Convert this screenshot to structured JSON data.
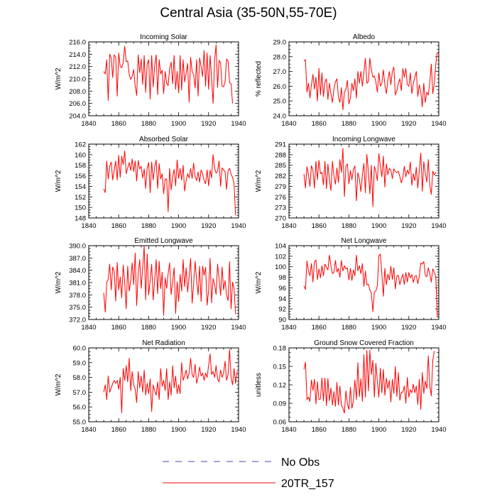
{
  "title": "Central Asia (35-50N,55-70E)",
  "colors": {
    "model": "#ff0000",
    "obs": "#4646b4",
    "axis": "#000000"
  },
  "legend": [
    {
      "label": "No Obs",
      "color": "#4646b4",
      "dash": true
    },
    {
      "label": "20TR_157",
      "color": "#ff0000",
      "dash": false
    }
  ],
  "chart_data": [
    {
      "type": "line",
      "title": "Incoming Solar",
      "xlabel": "",
      "ylabel": "W/m^2",
      "xlim": [
        1840,
        1940
      ],
      "xticks": [
        1840,
        1860,
        1880,
        1900,
        1920,
        1940
      ],
      "ylim": [
        204,
        216
      ],
      "yticks": [
        "204.0",
        "206.0",
        "208.0",
        "210.0",
        "212.0",
        "214.0",
        "216.0"
      ],
      "x_start": 1850,
      "series": [
        {
          "name": "20TR_157",
          "values": [
            211.2,
            210.8,
            213.1,
            206.5,
            214.0,
            213.4,
            210.2,
            213.9,
            213.5,
            207.2,
            214.2,
            212.0,
            211.8,
            212.7,
            215.3,
            212.8,
            212.9,
            210.7,
            209.9,
            210.4,
            211.5,
            208.8,
            207.3,
            213.9,
            211.0,
            213.2,
            209.1,
            213.8,
            207.8,
            212.4,
            213.1,
            206.7,
            213.8,
            208.7,
            212.1,
            213.9,
            207.4,
            213.1,
            210.8,
            211.4,
            207.6,
            211.2,
            209.3,
            208.9,
            211.7,
            212.7,
            209.2,
            213.8,
            208.3,
            211.2,
            207.7,
            213.8,
            208.2,
            213.1,
            209.5,
            210.9,
            212.5,
            206.2,
            213.5,
            211.2,
            210.7,
            208.5,
            213.1,
            207.2,
            213.4,
            212.0,
            210.4,
            214.6,
            208.8,
            214.2,
            208.3,
            213.8,
            210.0,
            206.0,
            213.0,
            215.5,
            208.6,
            213.0,
            212.6,
            208.8,
            208.7,
            209.5,
            213.2,
            212.9,
            209.4,
            209.2,
            206.0
          ]
        }
      ]
    },
    {
      "type": "line",
      "title": "Albedo",
      "xlabel": "",
      "ylabel": "% reflected",
      "xlim": [
        1840,
        1940
      ],
      "xticks": [
        1840,
        1860,
        1880,
        1900,
        1920,
        1940
      ],
      "ylim": [
        24,
        29
      ],
      "yticks": [
        "24.0",
        "25.0",
        "26.0",
        "27.0",
        "28.0",
        "29.0"
      ],
      "x_start": 1850,
      "series": [
        {
          "name": "20TR_157",
          "values": [
            27.7,
            27.8,
            25.6,
            26.2,
            25.2,
            26.1,
            26.8,
            25.8,
            26.6,
            25.0,
            27.2,
            25.4,
            26.9,
            25.3,
            26.3,
            26.5,
            25.1,
            26.2,
            25.5,
            24.9,
            25.8,
            26.3,
            26.5,
            25.3,
            24.9,
            25.9,
            24.4,
            25.6,
            25.8,
            26.4,
            24.8,
            25.2,
            26.2,
            25.7,
            26.5,
            25.2,
            27.0,
            26.2,
            27.0,
            26.0,
            26.9,
            27.9,
            26.2,
            26.3,
            27.9,
            27.1,
            26.6,
            26.7,
            26.3,
            25.6,
            26.9,
            26.0,
            26.2,
            27.1,
            26.1,
            25.5,
            26.4,
            27.0,
            26.1,
            27.0,
            27.3,
            25.4,
            25.7,
            26.2,
            26.5,
            25.7,
            27.2,
            26.6,
            27.2,
            26.1,
            26.0,
            26.9,
            25.5,
            26.2,
            26.6,
            27.0,
            25.3,
            26.1,
            25.6,
            24.6,
            26.2,
            24.9,
            25.6,
            25.4,
            26.3,
            27.5,
            25.5,
            26.2,
            27.5,
            28.3
          ]
        }
      ]
    },
    {
      "type": "line",
      "title": "Absorbed Solar",
      "xlabel": "",
      "ylabel": "W/m^2",
      "xlim": [
        1840,
        1940
      ],
      "xticks": [
        1840,
        1860,
        1880,
        1900,
        1920,
        1940
      ],
      "ylim": [
        148,
        162
      ],
      "yticks": [
        "148",
        "150",
        "152",
        "154",
        "156",
        "158",
        "160",
        "162"
      ],
      "x_start": 1850,
      "series": [
        {
          "name": "20TR_157",
          "values": [
            153.5,
            152.8,
            158.8,
            155.4,
            157.8,
            158.6,
            155.2,
            157.1,
            158.8,
            155.2,
            159.9,
            155.7,
            159.7,
            158.1,
            160.7,
            156.4,
            157.5,
            158.5,
            157.0,
            159.2,
            156.8,
            158.8,
            155.0,
            158.9,
            157.3,
            157.8,
            155.6,
            157.3,
            153.6,
            157.5,
            158.5,
            152.8,
            158.6,
            155.2,
            157.6,
            159.0,
            153.6,
            158.3,
            155.4,
            156.4,
            152.6,
            155.4,
            155.4,
            149.2,
            157.4,
            153.3,
            155.8,
            157.2,
            154.1,
            159.0,
            155.5,
            157.4,
            155.2,
            158.0,
            153.1,
            155.1,
            156.4,
            155.6,
            157.4,
            155.5,
            158.4,
            155.8,
            155.1,
            156.7,
            154.8,
            157.1,
            156.4,
            155.1,
            154.5,
            157.1,
            154.1,
            157.1,
            155.6,
            160.0,
            157.5,
            156.5,
            156.9,
            158.8,
            154.0,
            157.5,
            157.1,
            156.8,
            153.4,
            157.0,
            157.4,
            156.3,
            155.7,
            154.5,
            148.5
          ]
        }
      ]
    },
    {
      "type": "line",
      "title": "Incoming Longwave",
      "xlabel": "",
      "ylabel": "W/m^2",
      "xlim": [
        1840,
        1940
      ],
      "xticks": [
        1840,
        1860,
        1880,
        1900,
        1920,
        1940
      ],
      "ylim": [
        270,
        291
      ],
      "yticks": [
        "270",
        "273",
        "276",
        "279",
        "282",
        "285",
        "288",
        "291"
      ],
      "x_start": 1850,
      "series": [
        {
          "name": "20TR_157",
          "values": [
            282.5,
            278.5,
            284.6,
            282.3,
            279.0,
            284.9,
            283.6,
            278.5,
            286.1,
            280.9,
            286.4,
            282.6,
            283.0,
            279.4,
            286.1,
            278.3,
            285.3,
            280.8,
            277.8,
            286.1,
            281.9,
            279.6,
            284.2,
            280.1,
            286.6,
            283.0,
            289.8,
            276.1,
            284.8,
            285.4,
            279.7,
            283.5,
            280.9,
            283.8,
            284.8,
            274.9,
            282.9,
            281.1,
            277.5,
            282.2,
            285.5,
            277.2,
            288.1,
            283.1,
            276.9,
            285.0,
            273.2,
            284.7,
            283.2,
            280.6,
            288.3,
            284.7,
            281.7,
            287.6,
            278.8,
            285.4,
            282.3,
            284.1,
            283.6,
            281.2,
            284.0,
            283.2,
            282.9,
            283.3,
            281.8,
            280.0,
            281.5,
            284.7,
            281.7,
            283.6,
            282.5,
            285.9,
            279.3,
            282.6,
            280.6,
            284.4,
            278.5,
            283.5,
            288.5,
            277.6,
            286.0,
            282.6,
            280.2,
            286.6,
            279.3,
            276.7,
            283.3,
            282.2,
            283.0
          ]
        }
      ]
    },
    {
      "type": "line",
      "title": "Emitted Longwave",
      "xlabel": "",
      "ylabel": "W/m^2",
      "xlim": [
        1840,
        1940
      ],
      "xticks": [
        1840,
        1860,
        1880,
        1900,
        1920,
        1940
      ],
      "ylim": [
        372,
        390
      ],
      "yticks": [
        "372.0",
        "375.0",
        "378.0",
        "381.0",
        "384.0",
        "387.0",
        "390.0"
      ],
      "x_start": 1850,
      "series": [
        {
          "name": "20TR_157",
          "values": [
            378.5,
            373.8,
            381.0,
            381.8,
            385.5,
            379.2,
            384.8,
            383.7,
            376.5,
            385.9,
            379.2,
            382.4,
            377.3,
            385.3,
            381.0,
            374.6,
            385.0,
            378.9,
            381.4,
            385.8,
            380.5,
            388.2,
            375.4,
            383.1,
            386.6,
            379.6,
            384.6,
            389.9,
            376.8,
            388.0,
            378.0,
            381.4,
            385.5,
            376.8,
            381.7,
            386.6,
            378.3,
            386.2,
            379.5,
            383.5,
            373.0,
            382.2,
            379.6,
            383.2,
            385.8,
            378.1,
            381.3,
            384.6,
            373.5,
            381.2,
            376.4,
            383.0,
            378.9,
            386.6,
            380.0,
            384.6,
            378.7,
            382.4,
            386.9,
            376.0,
            380.6,
            386.2,
            381.5,
            378.0,
            385.0,
            376.4,
            385.0,
            382.8,
            384.7,
            375.5,
            379.1,
            386.9,
            376.1,
            382.0,
            380.4,
            378.1,
            385.5,
            382.0,
            377.9,
            384.8,
            379.2,
            381.5,
            378.0,
            376.6,
            386.1,
            374.6,
            381.1,
            379.5,
            373.3
          ]
        }
      ]
    },
    {
      "type": "line",
      "title": "Net Longwave",
      "xlabel": "",
      "ylabel": "W/m^2",
      "xlim": [
        1840,
        1940
      ],
      "xticks": [
        1840,
        1860,
        1880,
        1900,
        1920,
        1940
      ],
      "ylim": [
        90,
        104
      ],
      "yticks": [
        "90",
        "92",
        "94",
        "96",
        "98",
        "100",
        "102",
        "104"
      ],
      "x_start": 1850,
      "series": [
        {
          "name": "20TR_157",
          "values": [
            96.4,
            95.7,
            101.1,
            99.2,
            98.3,
            100.6,
            97.1,
            100.9,
            101.3,
            97.6,
            99.6,
            97.9,
            100.2,
            98.3,
            100.5,
            99.9,
            99.4,
            102.2,
            100.2,
            98.7,
            98.9,
            101.2,
            99.0,
            99.7,
            98.0,
            101.2,
            99.2,
            100.2,
            99.6,
            99.8,
            97.5,
            99.7,
            97.4,
            99.4,
            98.3,
            102.2,
            99.2,
            100.2,
            98.7,
            100.6,
            96.3,
            99.2,
            96.6,
            96.7,
            95.6,
            95.0,
            91.5,
            95.2,
            95.4,
            96.4,
            102.1,
            102.4,
            98.7,
            94.4,
            99.7,
            96.6,
            98.6,
            97.5,
            100.1,
            97.6,
            99.8,
            95.8,
            98.2,
            98.4,
            96.6,
            97.7,
            98.6,
            96.6,
            98.9,
            97.1,
            98.9,
            97.9,
            98.5,
            97.0,
            98.2,
            98.3,
            96.8,
            98.2,
            100.7,
            100.5,
            101.0,
            98.4,
            98.1,
            99.8,
            98.7,
            97.1,
            99.6,
            98.9,
            98.1,
            90.4
          ]
        }
      ]
    },
    {
      "type": "line",
      "title": "Net Radiation",
      "xlabel": "",
      "ylabel": "W/m^2",
      "xlim": [
        1840,
        1940
      ],
      "xticks": [
        1840,
        1860,
        1880,
        1900,
        1920,
        1940
      ],
      "ylim": [
        55,
        60
      ],
      "yticks": [
        "55.0",
        "56.0",
        "57.0",
        "58.0",
        "59.0",
        "60.0"
      ],
      "x_start": 1850,
      "series": [
        {
          "name": "20TR_157",
          "values": [
            57.0,
            57.5,
            56.5,
            58.1,
            57.0,
            57.3,
            57.6,
            57.8,
            57.6,
            57.8,
            57.2,
            58.0,
            55.6,
            58.6,
            57.8,
            58.8,
            57.7,
            59.3,
            57.1,
            58.4,
            57.5,
            57.2,
            56.3,
            58.4,
            57.3,
            58.1,
            57.0,
            58.5,
            56.8,
            57.6,
            56.9,
            57.9,
            55.7,
            57.5,
            57.1,
            56.8,
            57.7,
            56.5,
            58.6,
            57.4,
            57.8,
            57.1,
            58.6,
            56.5,
            57.7,
            56.8,
            58.8,
            57.3,
            58.1,
            56.9,
            57.5,
            56.9,
            59.0,
            57.8,
            58.1,
            58.5,
            57.9,
            58.3,
            59.3,
            58.2,
            58.0,
            58.9,
            57.6,
            58.0,
            58.7,
            58.1,
            58.3,
            57.8,
            58.3,
            58.0,
            58.8,
            59.6,
            58.2,
            58.4,
            58.0,
            58.8,
            57.9,
            57.7,
            58.5,
            58.0,
            58.3,
            59.1,
            57.8,
            58.2,
            59.9,
            58.0,
            57.5,
            58.6,
            57.6,
            58.4
          ]
        }
      ]
    },
    {
      "type": "line",
      "title": "Ground Snow Covered Fraction",
      "xlabel": "",
      "ylabel": "unitless",
      "xlim": [
        1840,
        1940
      ],
      "xticks": [
        1840,
        1860,
        1880,
        1900,
        1920,
        1940
      ],
      "ylim": [
        0.06,
        0.18
      ],
      "yticks": [
        "0.06",
        "0.09",
        "0.12",
        "0.15",
        "0.18"
      ],
      "x_start": 1850,
      "series": [
        {
          "name": "20TR_157",
          "values": [
            0.145,
            0.157,
            0.096,
            0.1,
            0.093,
            0.128,
            0.111,
            0.129,
            0.089,
            0.125,
            0.096,
            0.097,
            0.131,
            0.094,
            0.131,
            0.086,
            0.13,
            0.094,
            0.115,
            0.087,
            0.109,
            0.085,
            0.124,
            0.087,
            0.118,
            0.087,
            0.082,
            0.074,
            0.11,
            0.089,
            0.08,
            0.116,
            0.082,
            0.093,
            0.128,
            0.096,
            0.156,
            0.101,
            0.13,
            0.093,
            0.169,
            0.1,
            0.176,
            0.11,
            0.176,
            0.137,
            0.16,
            0.1,
            0.155,
            0.125,
            0.1,
            0.147,
            0.107,
            0.145,
            0.103,
            0.131,
            0.114,
            0.127,
            0.092,
            0.129,
            0.106,
            0.15,
            0.101,
            0.14,
            0.095,
            0.108,
            0.108,
            0.118,
            0.09,
            0.132,
            0.1,
            0.112,
            0.107,
            0.121,
            0.107,
            0.118,
            0.088,
            0.129,
            0.08,
            0.14,
            0.106,
            0.126,
            0.114,
            0.167,
            0.118,
            0.102,
            0.16,
            0.175
          ]
        }
      ]
    }
  ]
}
